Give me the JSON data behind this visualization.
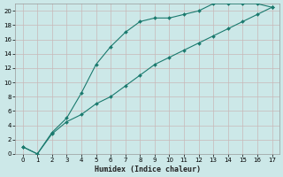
{
  "xlabel": "Humidex (Indice chaleur)",
  "background_color": "#cce8e8",
  "line_color": "#1a7a6e",
  "grid_color": "#c8b8b8",
  "xlim": [
    -0.5,
    17.5
  ],
  "ylim": [
    0,
    21
  ],
  "xticks": [
    0,
    1,
    2,
    3,
    4,
    5,
    6,
    7,
    8,
    9,
    10,
    11,
    12,
    13,
    14,
    15,
    16,
    17
  ],
  "yticks": [
    0,
    2,
    4,
    6,
    8,
    10,
    12,
    14,
    16,
    18,
    20
  ],
  "line1_x": [
    0,
    1,
    2,
    3,
    4,
    5,
    6,
    7,
    8,
    9,
    10,
    11,
    12,
    13,
    14,
    15,
    16,
    17
  ],
  "line1_y": [
    1,
    0,
    3,
    5,
    8.5,
    12.5,
    15,
    17,
    18.5,
    19,
    19,
    19.5,
    20,
    21,
    21,
    21,
    21,
    20.5
  ],
  "line2_x": [
    0,
    1,
    2,
    3,
    4,
    5,
    6,
    7,
    8,
    9,
    10,
    11,
    12,
    13,
    14,
    15,
    16,
    17
  ],
  "line2_y": [
    1,
    0,
    2.8,
    4.5,
    5.5,
    7,
    8,
    9.5,
    11,
    12.5,
    13.5,
    14.5,
    15.5,
    16.5,
    17.5,
    18.5,
    19.5,
    20.5
  ]
}
